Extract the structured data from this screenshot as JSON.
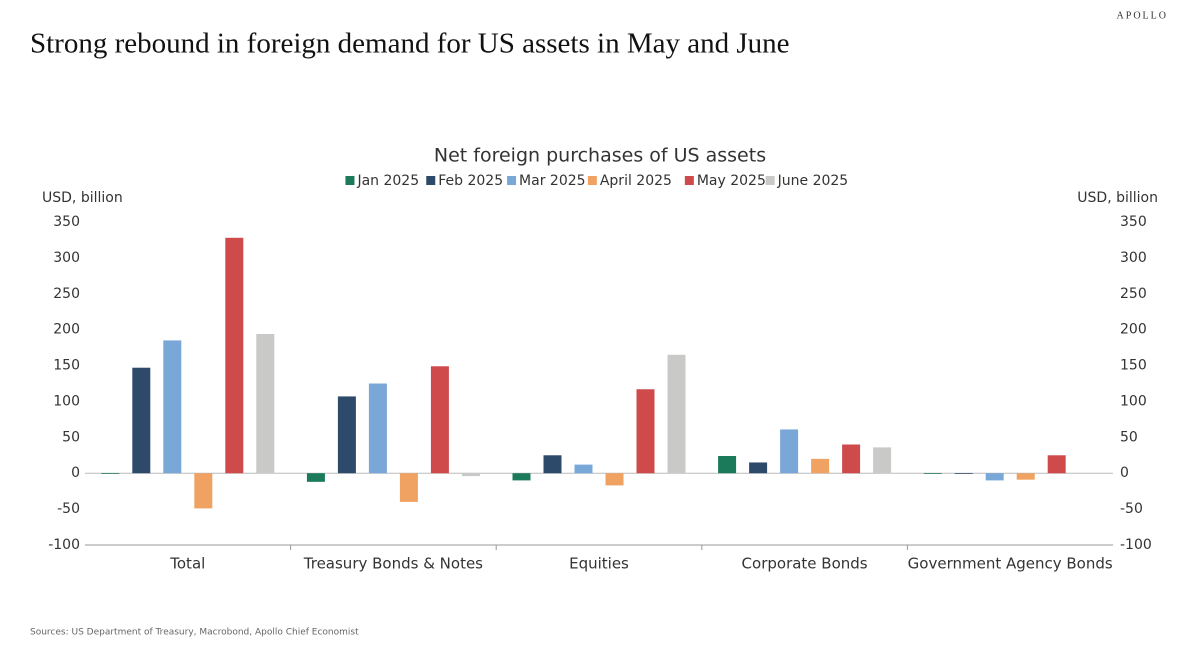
{
  "header": {
    "brand": "APOLLO",
    "headline": "Strong rebound in foreign demand for US assets in May and June"
  },
  "chart_data": {
    "type": "bar",
    "title": "Net foreign purchases of US assets",
    "y_label": "USD, billion",
    "y2_label": "USD, billion",
    "categories": [
      "Total",
      "Treasury Bonds & Notes",
      "Equities",
      "Corporate Bonds",
      "Government Agency Bonds"
    ],
    "series": [
      {
        "name": "Jan 2025",
        "color": "#1b7a5a",
        "values": [
          -1,
          -12,
          -10,
          24,
          -1
        ]
      },
      {
        "name": "Feb 2025",
        "color": "#2e4a6b",
        "values": [
          147,
          107,
          25,
          15,
          -1
        ]
      },
      {
        "name": "Mar 2025",
        "color": "#78a7d8",
        "values": [
          185,
          125,
          12,
          61,
          -10
        ]
      },
      {
        "name": "April 2025",
        "color": "#f0a263",
        "values": [
          -49,
          -40,
          -17,
          20,
          -9
        ]
      },
      {
        "name": "May 2025",
        "color": "#cf4a4a",
        "values": [
          328,
          149,
          117,
          40,
          25
        ]
      },
      {
        "name": "June 2025",
        "color": "#c9c9c7",
        "values": [
          194,
          -4,
          165,
          36,
          0
        ]
      }
    ],
    "ylim": [
      -100,
      350
    ],
    "yticks": [
      -100,
      -50,
      0,
      50,
      100,
      150,
      200,
      250,
      300,
      350
    ],
    "y2lim": [
      -100,
      350
    ],
    "y2ticks": [
      -100,
      -50,
      0,
      50,
      100,
      150,
      200,
      250,
      300,
      350
    ],
    "legend": "top"
  },
  "footer": {
    "source": "Sources: US Department of Treasury, Macrobond, Apollo Chief Economist"
  }
}
